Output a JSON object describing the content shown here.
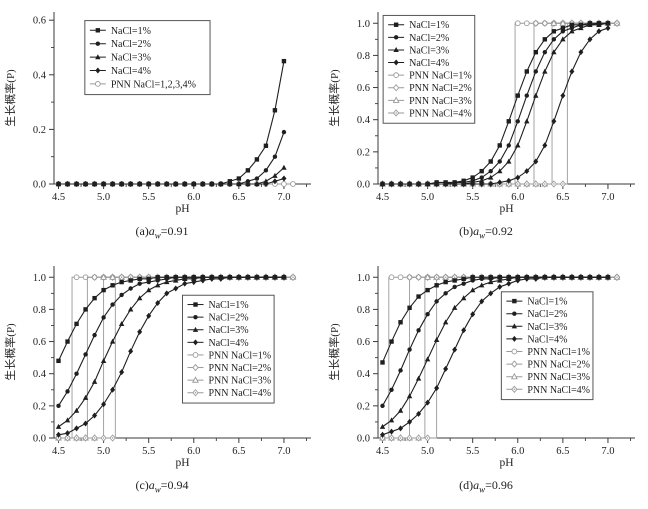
{
  "figure": {
    "background": "#ffffff",
    "solid_color": "#1f1f1f",
    "pnn_color": "#9a9a9a",
    "axis_color": "#3a3a3a",
    "xlabel": "pH",
    "ylabel": "生长概率(P)"
  },
  "chart_data": [
    {
      "id": "a",
      "type": "line",
      "title": "(a)aw=0.91",
      "caption_pre": "(",
      "caption_letter": "a",
      "caption_close": ")",
      "caption_var": "a",
      "caption_sub": "w",
      "caption_post": "=0.91",
      "xlabel": "pH",
      "ylabel": "生长概率(P)",
      "xlim": [
        4.45,
        7.3
      ],
      "ylim": [
        0,
        0.63
      ],
      "xticks": [
        4.5,
        5.0,
        5.5,
        6.0,
        6.5,
        7.0
      ],
      "yticks": [
        0.0,
        0.2,
        0.4,
        0.6
      ],
      "legend_pos": {
        "fx": 0.12,
        "fy": 0.05
      },
      "series": [
        {
          "name": "NaCl=1%",
          "marker": "square",
          "style": "solid",
          "x_start": 4.5,
          "x_step": 0.1,
          "y": [
            0,
            0,
            0,
            0,
            0,
            0,
            0,
            0,
            0,
            0,
            0,
            0,
            0,
            0,
            0,
            0,
            0,
            0,
            0,
            0.01,
            0.02,
            0.05,
            0.09,
            0.14,
            0.27,
            0.45
          ]
        },
        {
          "name": "NaCl=2%",
          "marker": "circle",
          "style": "solid",
          "x_start": 4.5,
          "x_step": 0.1,
          "y": [
            0,
            0,
            0,
            0,
            0,
            0,
            0,
            0,
            0,
            0,
            0,
            0,
            0,
            0,
            0,
            0,
            0,
            0,
            0,
            0,
            0,
            0.01,
            0.02,
            0.05,
            0.1,
            0.19
          ]
        },
        {
          "name": "NaCl=3%",
          "marker": "triangle",
          "style": "solid",
          "x_start": 4.5,
          "x_step": 0.1,
          "y": [
            0,
            0,
            0,
            0,
            0,
            0,
            0,
            0,
            0,
            0,
            0,
            0,
            0,
            0,
            0,
            0,
            0,
            0,
            0,
            0,
            0,
            0,
            0,
            0.01,
            0.03,
            0.06
          ]
        },
        {
          "name": "NaCl=4%",
          "marker": "diamond",
          "style": "solid",
          "x_start": 4.5,
          "x_step": 0.1,
          "y": [
            0,
            0,
            0,
            0,
            0,
            0,
            0,
            0,
            0,
            0,
            0,
            0,
            0,
            0,
            0,
            0,
            0,
            0,
            0,
            0,
            0,
            0,
            0,
            0,
            0.01,
            0.02
          ]
        },
        {
          "name": "PNN NaCl=1,2,3,4%",
          "marker": "ocircle",
          "style": "pnn",
          "x_start": 4.5,
          "x_end": 7.1,
          "x_step": 0.1,
          "jump_at": null
        }
      ]
    },
    {
      "id": "b",
      "type": "line",
      "title": "(b)aw=0.92",
      "caption_pre": "(",
      "caption_letter": "b",
      "caption_close": ")",
      "caption_var": "a",
      "caption_sub": "w",
      "caption_post": "=0.92",
      "xlabel": "pH",
      "ylabel": "生长概率(P)",
      "xlim": [
        4.45,
        7.3
      ],
      "ylim": [
        0,
        1.07
      ],
      "xticks": [
        4.5,
        5.0,
        5.5,
        6.0,
        6.5,
        7.0
      ],
      "yticks": [
        0.0,
        0.2,
        0.4,
        0.6,
        0.8,
        1.0
      ],
      "legend_pos": {
        "fx": 0.02,
        "fy": 0.02
      },
      "series": [
        {
          "name": "NaCl=1%",
          "marker": "square",
          "style": "solid",
          "x_start": 4.5,
          "x_step": 0.1,
          "y": [
            0,
            0,
            0,
            0,
            0,
            0,
            0.01,
            0.01,
            0.01,
            0.02,
            0.04,
            0.08,
            0.14,
            0.24,
            0.39,
            0.55,
            0.7,
            0.82,
            0.9,
            0.95,
            0.97,
            0.99,
            0.99,
            1,
            1,
            1
          ]
        },
        {
          "name": "NaCl=2%",
          "marker": "circle",
          "style": "solid",
          "x_start": 4.5,
          "x_step": 0.1,
          "y": [
            0,
            0,
            0,
            0,
            0,
            0,
            0,
            0,
            0.01,
            0.01,
            0.02,
            0.04,
            0.08,
            0.14,
            0.24,
            0.39,
            0.55,
            0.7,
            0.82,
            0.9,
            0.95,
            0.97,
            0.99,
            0.99,
            1,
            1
          ]
        },
        {
          "name": "NaCl=3%",
          "marker": "triangle",
          "style": "solid",
          "x_start": 4.5,
          "x_step": 0.1,
          "y": [
            0,
            0,
            0,
            0,
            0,
            0,
            0,
            0,
            0,
            0,
            0.01,
            0.02,
            0.04,
            0.08,
            0.14,
            0.24,
            0.39,
            0.55,
            0.7,
            0.82,
            0.9,
            0.95,
            0.97,
            0.99,
            0.99,
            1
          ]
        },
        {
          "name": "NaCl=4%",
          "marker": "diamond",
          "style": "solid",
          "x_start": 4.5,
          "x_step": 0.1,
          "y": [
            0,
            0,
            0,
            0,
            0,
            0,
            0,
            0,
            0,
            0,
            0,
            0,
            0,
            0.01,
            0.02,
            0.04,
            0.08,
            0.14,
            0.24,
            0.39,
            0.55,
            0.7,
            0.82,
            0.9,
            0.95,
            0.97
          ]
        },
        {
          "name": "PNN NaCl=1%",
          "marker": "ocircle",
          "style": "pnn",
          "x_start": 4.5,
          "x_end": 7.1,
          "x_step": 0.1,
          "jump_at": 5.97
        },
        {
          "name": "PNN NaCl=2%",
          "marker": "odiamond",
          "style": "pnn",
          "x_start": 4.5,
          "x_end": 7.1,
          "x_step": 0.1,
          "jump_at": 6.18
        },
        {
          "name": "PNN NaCl=3%",
          "marker": "otriangle",
          "style": "pnn",
          "x_start": 4.5,
          "x_end": 7.1,
          "x_step": 0.1,
          "jump_at": 6.38
        },
        {
          "name": "PNN NaCl=4%",
          "marker": "ostar",
          "style": "pnn",
          "x_start": 4.5,
          "x_end": 7.1,
          "x_step": 0.1,
          "jump_at": 6.55
        }
      ]
    },
    {
      "id": "c",
      "type": "line",
      "title": "(c)aw=0.94",
      "caption_pre": "(",
      "caption_letter": "c",
      "caption_close": ")",
      "caption_var": "a",
      "caption_sub": "w",
      "caption_post": "=0.94",
      "xlabel": "pH",
      "ylabel": "生长概率(P)",
      "xlim": [
        4.45,
        7.3
      ],
      "ylim": [
        0,
        1.07
      ],
      "xticks": [
        4.5,
        5.0,
        5.5,
        6.0,
        6.5,
        7.0
      ],
      "yticks": [
        0.0,
        0.2,
        0.4,
        0.6,
        0.8,
        1.0
      ],
      "legend_pos": {
        "fx": 0.5,
        "fy": 0.17
      },
      "series": [
        {
          "name": "NaCl=1%",
          "marker": "square",
          "style": "solid",
          "x_start": 4.5,
          "x_step": 0.1,
          "y": [
            0.48,
            0.6,
            0.71,
            0.8,
            0.87,
            0.92,
            0.95,
            0.97,
            0.98,
            0.99,
            0.99,
            1,
            1,
            1,
            1,
            1,
            1,
            1,
            1,
            1,
            1,
            1,
            1,
            1,
            1,
            1
          ]
        },
        {
          "name": "NaCl=2%",
          "marker": "circle",
          "style": "solid",
          "x_start": 4.5,
          "x_step": 0.1,
          "y": [
            0.2,
            0.29,
            0.4,
            0.52,
            0.64,
            0.75,
            0.83,
            0.89,
            0.93,
            0.96,
            0.97,
            0.98,
            0.99,
            1,
            1,
            1,
            1,
            1,
            1,
            1,
            1,
            1,
            1,
            1,
            1,
            1
          ]
        },
        {
          "name": "NaCl=3%",
          "marker": "triangle",
          "style": "solid",
          "x_start": 4.5,
          "x_step": 0.1,
          "y": [
            0.07,
            0.11,
            0.17,
            0.25,
            0.35,
            0.48,
            0.6,
            0.71,
            0.8,
            0.87,
            0.92,
            0.95,
            0.97,
            0.98,
            0.99,
            0.99,
            1,
            1,
            1,
            1,
            1,
            1,
            1,
            1,
            1,
            1
          ]
        },
        {
          "name": "NaCl=4%",
          "marker": "diamond",
          "style": "solid",
          "x_start": 4.5,
          "x_step": 0.1,
          "y": [
            0.02,
            0.03,
            0.06,
            0.09,
            0.14,
            0.21,
            0.3,
            0.41,
            0.54,
            0.66,
            0.76,
            0.84,
            0.9,
            0.93,
            0.96,
            0.97,
            0.98,
            0.99,
            0.99,
            1,
            1,
            1,
            1,
            1,
            1,
            1
          ]
        },
        {
          "name": "PNN NaCl=1%",
          "marker": "ocircle",
          "style": "pnn",
          "x_start": 4.5,
          "x_end": 7.1,
          "x_step": 0.1,
          "jump_at": 4.65
        },
        {
          "name": "PNN NaCl=2%",
          "marker": "odiamond",
          "style": "pnn",
          "x_start": 4.5,
          "x_end": 7.1,
          "x_step": 0.1,
          "jump_at": 4.82
        },
        {
          "name": "PNN NaCl=3%",
          "marker": "otriangle",
          "style": "pnn",
          "x_start": 4.5,
          "x_end": 7.1,
          "x_step": 0.1,
          "jump_at": 5.0
        },
        {
          "name": "PNN NaCl=4%",
          "marker": "ostar",
          "style": "pnn",
          "x_start": 4.5,
          "x_end": 7.1,
          "x_step": 0.1,
          "jump_at": 5.13
        }
      ]
    },
    {
      "id": "d",
      "type": "line",
      "title": "(d)aw=0.96",
      "caption_pre": "(",
      "caption_letter": "d",
      "caption_close": ")",
      "caption_var": "a",
      "caption_sub": "w",
      "caption_post": "=0.96",
      "xlabel": "pH",
      "ylabel": "生长概率(P)",
      "xlim": [
        4.45,
        7.3
      ],
      "ylim": [
        0,
        1.07
      ],
      "xticks": [
        4.5,
        5.0,
        5.5,
        6.0,
        6.5,
        7.0
      ],
      "yticks": [
        0.0,
        0.2,
        0.4,
        0.6,
        0.8,
        1.0
      ],
      "legend_pos": {
        "fx": 0.48,
        "fy": 0.15
      },
      "series": [
        {
          "name": "NaCl=1%",
          "marker": "square",
          "style": "solid",
          "x_start": 4.5,
          "x_step": 0.1,
          "y": [
            0.47,
            0.6,
            0.72,
            0.81,
            0.88,
            0.92,
            0.95,
            0.97,
            0.98,
            0.99,
            1,
            1,
            1,
            1,
            1,
            1,
            1,
            1,
            1,
            1,
            1,
            1,
            1,
            1,
            1,
            1
          ]
        },
        {
          "name": "NaCl=2%",
          "marker": "circle",
          "style": "solid",
          "x_start": 4.5,
          "x_step": 0.1,
          "y": [
            0.2,
            0.3,
            0.42,
            0.55,
            0.67,
            0.77,
            0.85,
            0.9,
            0.94,
            0.96,
            0.98,
            0.99,
            0.99,
            1,
            1,
            1,
            1,
            1,
            1,
            1,
            1,
            1,
            1,
            1,
            1,
            1
          ]
        },
        {
          "name": "NaCl=3%",
          "marker": "triangle",
          "style": "solid",
          "x_start": 4.5,
          "x_step": 0.1,
          "y": [
            0.07,
            0.11,
            0.17,
            0.26,
            0.37,
            0.49,
            0.61,
            0.72,
            0.81,
            0.87,
            0.92,
            0.95,
            0.97,
            0.98,
            0.99,
            1,
            1,
            1,
            1,
            1,
            1,
            1,
            1,
            1,
            1,
            1
          ]
        },
        {
          "name": "NaCl=4%",
          "marker": "diamond",
          "style": "solid",
          "x_start": 4.5,
          "x_step": 0.1,
          "y": [
            0.02,
            0.04,
            0.06,
            0.1,
            0.15,
            0.22,
            0.31,
            0.43,
            0.55,
            0.67,
            0.77,
            0.85,
            0.9,
            0.94,
            0.96,
            0.98,
            0.99,
            0.99,
            1,
            1,
            1,
            1,
            1,
            1,
            1,
            1
          ]
        },
        {
          "name": "PNN NaCl=1%",
          "marker": "ocircle",
          "style": "pnn",
          "x_start": 4.5,
          "x_end": 7.1,
          "x_step": 0.1,
          "jump_at": 4.57
        },
        {
          "name": "PNN NaCl=2%",
          "marker": "odiamond",
          "style": "pnn",
          "x_start": 4.5,
          "x_end": 7.1,
          "x_step": 0.1,
          "jump_at": 4.8
        },
        {
          "name": "PNN NaCl=3%",
          "marker": "otriangle",
          "style": "pnn",
          "x_start": 4.5,
          "x_end": 7.1,
          "x_step": 0.1,
          "jump_at": 4.97
        },
        {
          "name": "PNN NaCl=4%",
          "marker": "ostar",
          "style": "pnn",
          "x_start": 4.5,
          "x_end": 7.1,
          "x_step": 0.1,
          "jump_at": 5.1
        }
      ]
    }
  ]
}
